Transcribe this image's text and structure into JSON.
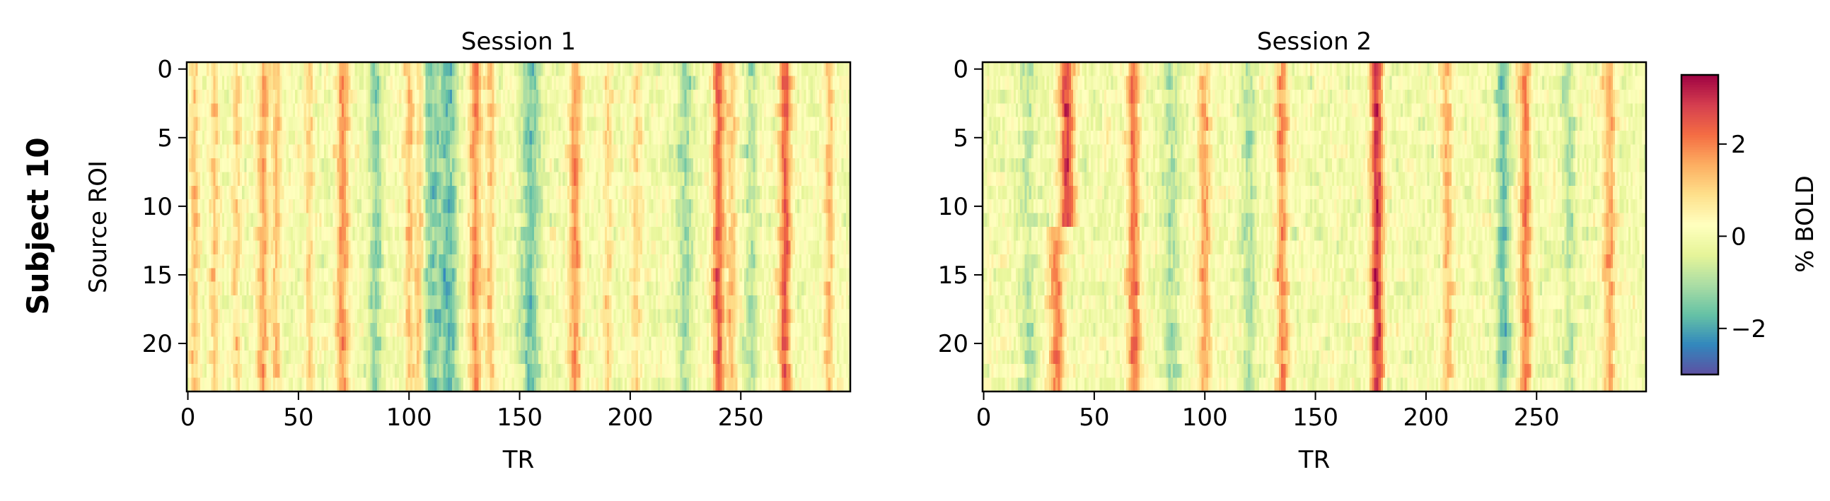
{
  "figure": {
    "row_label": "Subject 10",
    "colorbar_label": "% BOLD"
  },
  "colormap": [
    "#5e4fa2",
    "#3288bd",
    "#66c2a5",
    "#abdda4",
    "#e6f598",
    "#ffffbf",
    "#fee08b",
    "#fdae61",
    "#f46d43",
    "#d53e4f",
    "#9e0142"
  ],
  "chart_data": [
    {
      "type": "heatmap",
      "title": "Session 1",
      "xlabel": "TR",
      "ylabel": "Source ROI",
      "n_rows": 24,
      "n_cols": 300,
      "xlim": [
        0,
        299
      ],
      "ylim": [
        23.5,
        -0.5
      ],
      "x_ticks": [
        0,
        50,
        100,
        150,
        200,
        250
      ],
      "y_ticks": [
        0,
        5,
        10,
        15,
        20
      ],
      "value_range": [
        -3.0,
        3.5
      ],
      "pattern": {
        "seed": 11,
        "events": [
          {
            "tr": 3,
            "amp": 1.2,
            "width": 1.5,
            "rows": [
              0,
              23
            ]
          },
          {
            "tr": 12,
            "amp": 1.1,
            "width": 1.5,
            "rows": [
              0,
              23
            ]
          },
          {
            "tr": 22,
            "amp": 1.0,
            "width": 1.5,
            "rows": [
              0,
              23
            ]
          },
          {
            "tr": 34,
            "amp": 1.6,
            "width": 1.8,
            "rows": [
              0,
              23
            ]
          },
          {
            "tr": 40,
            "amp": 1.2,
            "width": 1.5,
            "rows": [
              0,
              23
            ]
          },
          {
            "tr": 55,
            "amp": 1.0,
            "width": 1.5,
            "rows": [
              0,
              23
            ]
          },
          {
            "tr": 70,
            "amp": 1.8,
            "width": 2.0,
            "rows": [
              0,
              23
            ]
          },
          {
            "tr": 100,
            "amp": 1.2,
            "width": 1.5,
            "rows": [
              0,
              23
            ]
          },
          {
            "tr": 105,
            "amp": 1.4,
            "width": 1.5,
            "rows": [
              0,
              23
            ]
          },
          {
            "tr": 130,
            "amp": 1.8,
            "width": 2.0,
            "rows": [
              0,
              23
            ]
          },
          {
            "tr": 137,
            "amp": 1.3,
            "width": 1.5,
            "rows": [
              0,
              23
            ]
          },
          {
            "tr": 175,
            "amp": 1.8,
            "width": 2.0,
            "rows": [
              0,
              23
            ]
          },
          {
            "tr": 190,
            "amp": 1.0,
            "width": 1.5,
            "rows": [
              0,
              23
            ]
          },
          {
            "tr": 203,
            "amp": 1.0,
            "width": 1.5,
            "rows": [
              0,
              23
            ]
          },
          {
            "tr": 240,
            "amp": 2.4,
            "width": 2.0,
            "rows": [
              0,
              23
            ]
          },
          {
            "tr": 246,
            "amp": 1.2,
            "width": 1.5,
            "rows": [
              0,
              23
            ]
          },
          {
            "tr": 270,
            "amp": 2.4,
            "width": 2.0,
            "rows": [
              0,
              23
            ]
          },
          {
            "tr": 290,
            "amp": 1.3,
            "width": 1.5,
            "rows": [
              0,
              23
            ]
          },
          {
            "tr": 85,
            "amp": -1.2,
            "width": 2.0,
            "rows": [
              0,
              23
            ]
          },
          {
            "tr": 110,
            "amp": -1.4,
            "width": 3.0,
            "rows": [
              0,
              23
            ]
          },
          {
            "tr": 118,
            "amp": -1.6,
            "width": 3.0,
            "rows": [
              0,
              23
            ]
          },
          {
            "tr": 155,
            "amp": -1.5,
            "width": 3.0,
            "rows": [
              0,
              23
            ]
          },
          {
            "tr": 225,
            "amp": -1.0,
            "width": 2.5,
            "rows": [
              0,
              23
            ]
          },
          {
            "tr": 255,
            "amp": -0.9,
            "width": 2.0,
            "rows": [
              0,
              23
            ]
          }
        ]
      }
    },
    {
      "type": "heatmap",
      "title": "Session 2",
      "xlabel": "TR",
      "ylabel": "",
      "n_rows": 24,
      "n_cols": 300,
      "xlim": [
        0,
        299
      ],
      "ylim": [
        23.5,
        -0.5
      ],
      "x_ticks": [
        0,
        50,
        100,
        150,
        200,
        250
      ],
      "y_ticks": [
        0,
        5,
        10,
        15,
        20
      ],
      "value_range": [
        -3.0,
        3.5
      ],
      "pattern": {
        "seed": 27,
        "events": [
          {
            "tr": 38,
            "amp": 2.8,
            "width": 2.5,
            "rows": [
              0,
              11
            ]
          },
          {
            "tr": 33,
            "amp": 2.0,
            "width": 2.5,
            "rows": [
              12,
              23
            ]
          },
          {
            "tr": 68,
            "amp": 2.2,
            "width": 2.0,
            "rows": [
              0,
              23
            ]
          },
          {
            "tr": 100,
            "amp": 1.5,
            "width": 2.0,
            "rows": [
              0,
              23
            ]
          },
          {
            "tr": 135,
            "amp": 1.8,
            "width": 2.0,
            "rows": [
              0,
              23
            ]
          },
          {
            "tr": 178,
            "amp": 3.0,
            "width": 2.0,
            "rows": [
              0,
              23
            ]
          },
          {
            "tr": 210,
            "amp": 1.3,
            "width": 2.0,
            "rows": [
              0,
              23
            ]
          },
          {
            "tr": 245,
            "amp": 2.0,
            "width": 2.0,
            "rows": [
              0,
              23
            ]
          },
          {
            "tr": 283,
            "amp": 1.5,
            "width": 2.0,
            "rows": [
              0,
              23
            ]
          },
          {
            "tr": 20,
            "amp": -0.8,
            "width": 2.5,
            "rows": [
              0,
              23
            ]
          },
          {
            "tr": 85,
            "amp": -1.0,
            "width": 2.5,
            "rows": [
              0,
              23
            ]
          },
          {
            "tr": 120,
            "amp": -0.9,
            "width": 2.5,
            "rows": [
              0,
              23
            ]
          },
          {
            "tr": 235,
            "amp": -1.6,
            "width": 2.0,
            "rows": [
              0,
              23
            ]
          },
          {
            "tr": 265,
            "amp": -0.9,
            "width": 2.0,
            "rows": [
              0,
              23
            ]
          }
        ]
      }
    }
  ],
  "colorbar": {
    "range": [
      -3.0,
      3.5
    ],
    "ticks": [
      -2,
      0,
      2
    ],
    "tick_labels": [
      "−2",
      "0",
      "2"
    ]
  }
}
